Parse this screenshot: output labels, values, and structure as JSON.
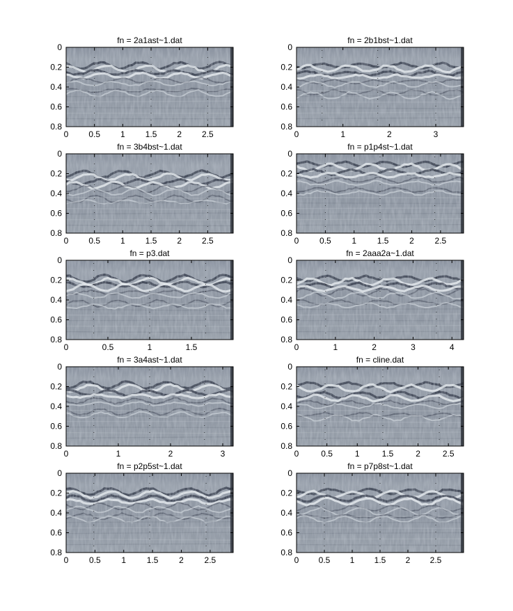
{
  "figure": {
    "background": "#ffffff",
    "panel_gray": "#8f97a3",
    "panel_dark": "#3a4150",
    "panel_light": "#e6ebef"
  },
  "chart_data": [
    {
      "type": "heatmap",
      "title": "fn = 2a1ast~1.dat",
      "xlim": [
        0,
        2.95
      ],
      "ylim": [
        0.8,
        0
      ],
      "xticks": [
        0,
        0.5,
        1,
        1.5,
        2,
        2.5
      ],
      "xtick_labels": [
        "0",
        "0.5",
        "1",
        "1.5",
        "2",
        "2.5"
      ],
      "yticks": [
        0,
        0.2,
        0.4,
        0.6,
        0.8
      ],
      "ytick_labels": [
        "0",
        "0.2",
        "0.4",
        "0.6",
        "0.8"
      ],
      "reflector_depths": [
        0.2,
        0.27,
        0.35,
        0.45
      ],
      "trace_markers_x": [
        0.5,
        1.5,
        2.5
      ]
    },
    {
      "type": "heatmap",
      "title": "fn = 2b1bst~1.dat",
      "xlim": [
        0,
        3.6
      ],
      "ylim": [
        0.8,
        0
      ],
      "xticks": [
        0,
        1,
        2,
        3
      ],
      "xtick_labels": [
        "0",
        "1",
        "2",
        "3"
      ],
      "yticks": [
        0,
        0.2,
        0.4,
        0.6,
        0.8
      ],
      "ytick_labels": [
        "0",
        "0.2",
        "0.4",
        "0.6",
        "0.8"
      ],
      "reflector_depths": [
        0.2,
        0.28,
        0.36,
        0.47
      ],
      "trace_markers_x": [
        0.55,
        1.75,
        3.0
      ]
    },
    {
      "type": "heatmap",
      "title": "fn = 3b4bst~1.dat",
      "xlim": [
        0,
        2.95
      ],
      "ylim": [
        0.8,
        0
      ],
      "xticks": [
        0,
        0.5,
        1,
        1.5,
        2,
        2.5
      ],
      "xtick_labels": [
        "0",
        "0.5",
        "1",
        "1.5",
        "2",
        "2.5"
      ],
      "yticks": [
        0,
        0.2,
        0.4,
        0.6,
        0.8
      ],
      "ytick_labels": [
        "0",
        "0.2",
        "0.4",
        "0.6",
        "0.8"
      ],
      "reflector_depths": [
        0.22,
        0.3,
        0.37,
        0.47
      ],
      "trace_markers_x": [
        0.5,
        1.5,
        2.5
      ]
    },
    {
      "type": "heatmap",
      "title": "fn = p1p4st~1.dat",
      "xlim": [
        0,
        2.9
      ],
      "ylim": [
        0.8,
        0
      ],
      "xticks": [
        0,
        0.5,
        1,
        1.5,
        2,
        2.5
      ],
      "xtick_labels": [
        "0",
        "0.5",
        "1",
        "1.5",
        "2",
        "2.5"
      ],
      "yticks": [
        0,
        0.2,
        0.4,
        0.6,
        0.8
      ],
      "ytick_labels": [
        "0",
        "0.2",
        "0.4",
        "0.6",
        "0.8"
      ],
      "reflector_depths": [
        0.12,
        0.2,
        0.28,
        0.38
      ],
      "trace_markers_x": [
        0.5,
        1.45,
        2.4
      ]
    },
    {
      "type": "heatmap",
      "title": "fn = p3.dat",
      "xlim": [
        0,
        2.0
      ],
      "ylim": [
        0.8,
        0
      ],
      "xticks": [
        0,
        0.5,
        1,
        1.5
      ],
      "xtick_labels": [
        "0",
        "0.5",
        "1",
        "1.5"
      ],
      "yticks": [
        0,
        0.2,
        0.4,
        0.6,
        0.8
      ],
      "ytick_labels": [
        "0",
        "0.2",
        "0.4",
        "0.6",
        "0.8"
      ],
      "reflector_depths": [
        0.2,
        0.26,
        0.34,
        0.45
      ],
      "trace_markers_x": [
        0.33,
        1.0,
        1.67
      ]
    },
    {
      "type": "heatmap",
      "title": "fn = 2aaa2a~1.dat",
      "xlim": [
        0,
        4.3
      ],
      "ylim": [
        0.8,
        0
      ],
      "xticks": [
        0,
        1,
        2,
        3,
        4
      ],
      "xtick_labels": [
        "0",
        "1",
        "2",
        "3",
        "4"
      ],
      "yticks": [
        0,
        0.2,
        0.4,
        0.6,
        0.8
      ],
      "ytick_labels": [
        "0",
        "0.2",
        "0.4",
        "0.6",
        "0.8"
      ],
      "reflector_depths": [
        0.2,
        0.27,
        0.34,
        0.44
      ],
      "trace_markers_x": [
        0.75,
        2.15,
        3.6
      ]
    },
    {
      "type": "heatmap",
      "title": "fn = 3a4ast~1.dat",
      "xlim": [
        0,
        3.2
      ],
      "ylim": [
        0.8,
        0
      ],
      "xticks": [
        0,
        1,
        2,
        3
      ],
      "xtick_labels": [
        "0",
        "1",
        "2",
        "3"
      ],
      "yticks": [
        0,
        0.2,
        0.4,
        0.6,
        0.8
      ],
      "ytick_labels": [
        "0",
        "0.2",
        "0.4",
        "0.6",
        "0.8"
      ],
      "reflector_depths": [
        0.2,
        0.28,
        0.36,
        0.47
      ],
      "trace_markers_x": [
        0.53,
        1.6,
        2.65
      ]
    },
    {
      "type": "heatmap",
      "title": "fn = cline.dat",
      "xlim": [
        0,
        2.75
      ],
      "ylim": [
        0.8,
        0
      ],
      "xticks": [
        0,
        0.5,
        1,
        1.5,
        2,
        2.5
      ],
      "xtick_labels": [
        "0",
        "0.5",
        "1",
        "1.5",
        "2",
        "2.5"
      ],
      "yticks": [
        0,
        0.2,
        0.4,
        0.6,
        0.8
      ],
      "ytick_labels": [
        "0",
        "0.2",
        "0.4",
        "0.6",
        "0.8"
      ],
      "reflector_depths": [
        0.2,
        0.3,
        0.38,
        0.5
      ],
      "trace_markers_x": [
        0.47,
        1.42,
        2.35
      ]
    },
    {
      "type": "heatmap",
      "title": "fn = p2p5st~1.dat",
      "xlim": [
        0,
        2.9
      ],
      "ylim": [
        0.8,
        0
      ],
      "xticks": [
        0,
        0.5,
        1,
        1.5,
        2,
        2.5
      ],
      "xtick_labels": [
        "0",
        "0.5",
        "1",
        "1.5",
        "2",
        "2.5"
      ],
      "yticks": [
        0,
        0.2,
        0.4,
        0.6,
        0.8
      ],
      "ytick_labels": [
        "0",
        "0.2",
        "0.4",
        "0.6",
        "0.8"
      ],
      "reflector_depths": [
        0.2,
        0.27,
        0.35,
        0.45
      ],
      "trace_markers_x": [
        0.48,
        1.45,
        2.43
      ]
    },
    {
      "type": "heatmap",
      "title": "fn = p7p8st~1.dat",
      "xlim": [
        0,
        3.0
      ],
      "ylim": [
        0.8,
        0
      ],
      "xticks": [
        0,
        0.5,
        1,
        1.5,
        2,
        2.5
      ],
      "xtick_labels": [
        "0",
        "0.5",
        "1",
        "1.5",
        "2",
        "2.5"
      ],
      "yticks": [
        0,
        0.2,
        0.4,
        0.6,
        0.8
      ],
      "ytick_labels": [
        "0",
        "0.2",
        "0.4",
        "0.6",
        "0.8"
      ],
      "reflector_depths": [
        0.2,
        0.27,
        0.37,
        0.45
      ],
      "trace_markers_x": [
        0.5,
        1.5,
        2.5
      ]
    }
  ]
}
